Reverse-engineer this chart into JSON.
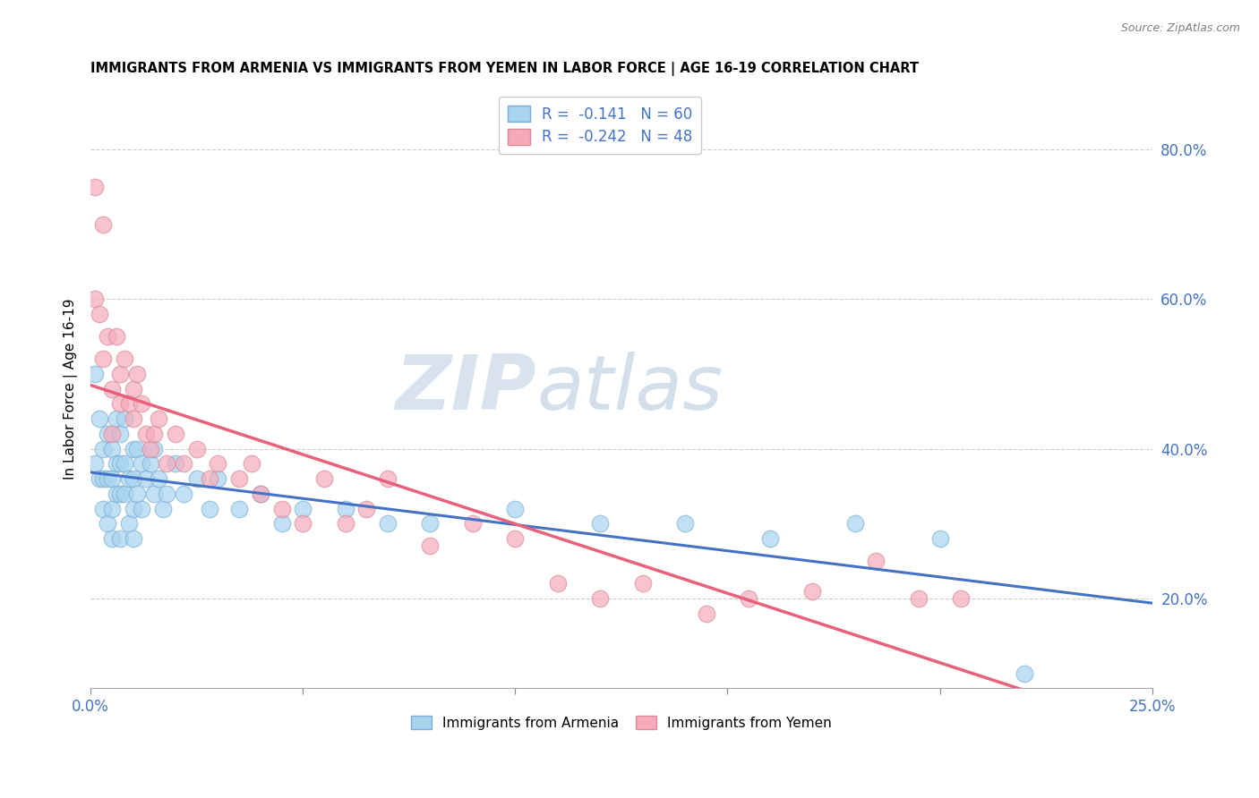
{
  "title": "IMMIGRANTS FROM ARMENIA VS IMMIGRANTS FROM YEMEN IN LABOR FORCE | AGE 16-19 CORRELATION CHART",
  "source": "Source: ZipAtlas.com",
  "ylabel": "In Labor Force | Age 16-19",
  "xlim": [
    0.0,
    0.25
  ],
  "ylim": [
    0.08,
    0.88
  ],
  "yticks_right": [
    0.2,
    0.4,
    0.6,
    0.8
  ],
  "ytick_labels_right": [
    "20.0%",
    "40.0%",
    "60.0%",
    "80.0%"
  ],
  "xtick_positions": [
    0.0,
    0.05,
    0.1,
    0.15,
    0.2,
    0.25
  ],
  "xtick_labels": [
    "0.0%",
    "",
    "",
    "",
    "",
    "25.0%"
  ],
  "armenia_color_fill": "#A8D4F0",
  "armenia_color_edge": "#7AAED4",
  "armenia_line_color": "#4472C4",
  "yemen_color_fill": "#F5AABB",
  "yemen_color_edge": "#D88898",
  "yemen_line_color": "#E8607A",
  "legend_R_color": "#4472C4",
  "legend_items": [
    {
      "label": "R =  -0.141   N = 60",
      "color": "#A8D4F0",
      "edge": "#7AAED4"
    },
    {
      "label": "R =  -0.242   N = 48",
      "color": "#F5AABB",
      "edge": "#D88898"
    }
  ],
  "bottom_legend": [
    "Immigrants from Armenia",
    "Immigrants from Yemen"
  ],
  "watermark_zip": "ZIP",
  "watermark_atlas": "atlas",
  "armenia_x": [
    0.001,
    0.001,
    0.002,
    0.002,
    0.003,
    0.003,
    0.003,
    0.004,
    0.004,
    0.004,
    0.005,
    0.005,
    0.005,
    0.005,
    0.006,
    0.006,
    0.006,
    0.007,
    0.007,
    0.007,
    0.007,
    0.008,
    0.008,
    0.008,
    0.009,
    0.009,
    0.01,
    0.01,
    0.01,
    0.01,
    0.011,
    0.011,
    0.012,
    0.012,
    0.013,
    0.014,
    0.015,
    0.015,
    0.016,
    0.017,
    0.018,
    0.02,
    0.022,
    0.025,
    0.028,
    0.03,
    0.035,
    0.04,
    0.045,
    0.05,
    0.06,
    0.07,
    0.08,
    0.1,
    0.12,
    0.14,
    0.16,
    0.18,
    0.2,
    0.22
  ],
  "armenia_y": [
    0.5,
    0.38,
    0.44,
    0.36,
    0.4,
    0.36,
    0.32,
    0.42,
    0.36,
    0.3,
    0.4,
    0.36,
    0.32,
    0.28,
    0.44,
    0.38,
    0.34,
    0.42,
    0.38,
    0.34,
    0.28,
    0.44,
    0.38,
    0.34,
    0.36,
    0.3,
    0.4,
    0.36,
    0.32,
    0.28,
    0.4,
    0.34,
    0.38,
    0.32,
    0.36,
    0.38,
    0.4,
    0.34,
    0.36,
    0.32,
    0.34,
    0.38,
    0.34,
    0.36,
    0.32,
    0.36,
    0.32,
    0.34,
    0.3,
    0.32,
    0.32,
    0.3,
    0.3,
    0.32,
    0.3,
    0.3,
    0.28,
    0.3,
    0.28,
    0.1
  ],
  "yemen_x": [
    0.001,
    0.001,
    0.002,
    0.003,
    0.003,
    0.004,
    0.005,
    0.005,
    0.006,
    0.007,
    0.007,
    0.008,
    0.009,
    0.01,
    0.01,
    0.011,
    0.012,
    0.013,
    0.014,
    0.015,
    0.016,
    0.018,
    0.02,
    0.022,
    0.025,
    0.028,
    0.03,
    0.035,
    0.038,
    0.04,
    0.045,
    0.05,
    0.055,
    0.06,
    0.065,
    0.07,
    0.08,
    0.09,
    0.1,
    0.11,
    0.12,
    0.13,
    0.145,
    0.155,
    0.17,
    0.185,
    0.195,
    0.205
  ],
  "yemen_y": [
    0.75,
    0.6,
    0.58,
    0.52,
    0.7,
    0.55,
    0.48,
    0.42,
    0.55,
    0.5,
    0.46,
    0.52,
    0.46,
    0.48,
    0.44,
    0.5,
    0.46,
    0.42,
    0.4,
    0.42,
    0.44,
    0.38,
    0.42,
    0.38,
    0.4,
    0.36,
    0.38,
    0.36,
    0.38,
    0.34,
    0.32,
    0.3,
    0.36,
    0.3,
    0.32,
    0.36,
    0.27,
    0.3,
    0.28,
    0.22,
    0.2,
    0.22,
    0.18,
    0.2,
    0.21,
    0.25,
    0.2,
    0.2
  ]
}
